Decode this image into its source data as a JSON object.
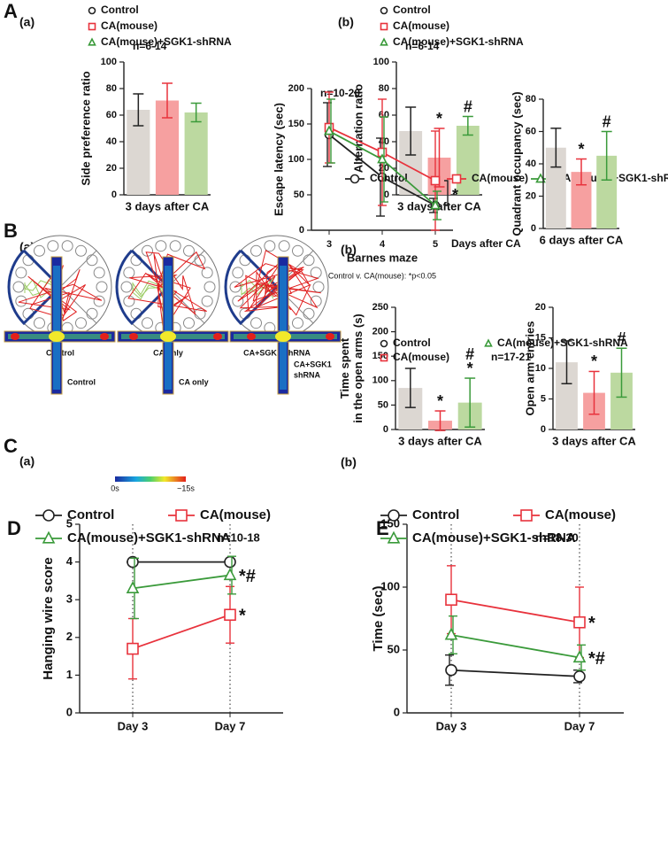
{
  "panel_letters": [
    "A",
    "B",
    "C",
    "D",
    "E"
  ],
  "sublabels": [
    "(a)",
    "(b)"
  ],
  "illustrations": {
    "maze_labels": [
      "Control",
      "CA only",
      "CA+SGK1-shRNA"
    ],
    "plus_maze_labels": [
      [
        "Control"
      ],
      [
        "CA only"
      ],
      [
        "CA+SGK1",
        "shRNA"
      ]
    ],
    "scale_labels": [
      "0s",
      "~15s"
    ]
  },
  "chart_data": [
    {
      "type": "bar",
      "note": "n=6-14",
      "ylabel": [
        "Side preference ratio"
      ],
      "xlabel": "3 days after CA",
      "categories": [
        "Control",
        "CA(mouse)",
        "CA(mouse)+SGK1-shRNA"
      ],
      "markers": [
        "circle",
        "square",
        "triangle"
      ],
      "colors": [
        "#222222",
        "#e8323c",
        "#3a9a3a"
      ],
      "fill_colors": [
        "#dcd7d2",
        "#f6a0a0",
        "#bcd9a0"
      ],
      "values": [
        64,
        71,
        62
      ],
      "errors": [
        12,
        13,
        7
      ],
      "ylim": [
        0,
        100
      ],
      "yticks": [
        0,
        20,
        40,
        60,
        80,
        100
      ]
    },
    {
      "type": "bar",
      "note": "n=6-14",
      "ylabel": [
        "Alternation ratio"
      ],
      "xlabel": "3 days after CA",
      "categories": [
        "Control",
        "CA(mouse)",
        "CA(mouse)+SGK1-shRNA"
      ],
      "markers": [
        "circle",
        "square",
        "triangle"
      ],
      "colors": [
        "#222222",
        "#e8323c",
        "#3a9a3a"
      ],
      "fill_colors": [
        "#dcd7d2",
        "#f6a0a0",
        "#bcd9a0"
      ],
      "values": [
        48,
        28,
        52
      ],
      "errors": [
        18,
        22,
        7
      ],
      "significance": [
        null,
        [
          "*"
        ],
        [
          "#"
        ]
      ],
      "ylim": [
        0,
        100
      ],
      "yticks": [
        0,
        20,
        40,
        60,
        80,
        100
      ]
    },
    {
      "type": "line",
      "note": "n=10-20",
      "ylabel": [
        "Escape latency (sec)"
      ],
      "xlabel": "Barnes maze",
      "x_title": "Days after CA",
      "footnote": "Control v. CA(mouse): *p<0.05",
      "annotation": "*",
      "categories": [
        "3",
        "4",
        "5"
      ],
      "ylim": [
        0,
        200
      ],
      "yticks": [
        0,
        50,
        100,
        150,
        200
      ],
      "series": [
        {
          "name": "Control",
          "color": "#222222",
          "marker": "circle",
          "values": [
            135,
            75,
            35
          ],
          "errors": [
            45,
            55,
            10
          ]
        },
        {
          "name": "CA(mouse)",
          "color": "#e8323c",
          "marker": "square",
          "values": [
            145,
            110,
            70
          ],
          "errors": [
            50,
            75,
            70
          ]
        },
        {
          "name": "CA(mouse)+SGK1-shRNA",
          "color": "#3a9a3a",
          "marker": "triangle",
          "values": [
            140,
            100,
            35
          ],
          "errors": [
            45,
            60,
            20
          ]
        }
      ]
    },
    {
      "type": "bar",
      "ylabel": [
        "Quadrant occupancy (sec)"
      ],
      "xlabel": "6 days after CA",
      "markers": [
        "circle",
        "square",
        "triangle"
      ],
      "colors": [
        "#222222",
        "#e8323c",
        "#3a9a3a"
      ],
      "fill_colors": [
        "#dcd7d2",
        "#f6a0a0",
        "#bcd9a0"
      ],
      "values": [
        50,
        35,
        45
      ],
      "errors": [
        12,
        8,
        15
      ],
      "significance": [
        null,
        [
          "*"
        ],
        [
          "#"
        ]
      ],
      "ylim": [
        0,
        80
      ],
      "yticks": [
        0,
        20,
        40,
        60,
        80
      ]
    },
    {
      "type": "bar",
      "note": "n=17-21",
      "ylabel": [
        "Time spent",
        "in the open arms (s)"
      ],
      "xlabel": "3 days after CA",
      "categories": [
        "Control",
        "CA(mouse)",
        "CA(mouse)+SGK1-shRNA"
      ],
      "markers": [
        "circle",
        "square",
        "triangle"
      ],
      "colors": [
        "#222222",
        "#e8323c",
        "#3a9a3a"
      ],
      "fill_colors": [
        "#dcd7d2",
        "#f6a0a0",
        "#bcd9a0"
      ],
      "values": [
        85,
        18,
        55
      ],
      "errors": [
        40,
        20,
        50
      ],
      "significance": [
        null,
        [
          "*"
        ],
        [
          "#",
          "*"
        ]
      ],
      "ylim": [
        0,
        250
      ],
      "yticks": [
        0,
        50,
        100,
        150,
        200,
        250
      ]
    },
    {
      "type": "bar",
      "ylabel": [
        "Open arm entries"
      ],
      "xlabel": "3 days after CA",
      "markers": [
        "circle",
        "square",
        "triangle"
      ],
      "colors": [
        "#222222",
        "#e8323c",
        "#3a9a3a"
      ],
      "fill_colors": [
        "#dcd7d2",
        "#f6a0a0",
        "#bcd9a0"
      ],
      "values": [
        11,
        6,
        9.3
      ],
      "errors": [
        3.5,
        3.5,
        4
      ],
      "significance": [
        null,
        [
          "*"
        ],
        [
          "#"
        ]
      ],
      "ylim": [
        0,
        20
      ],
      "yticks": [
        0,
        5,
        10,
        15,
        20
      ]
    },
    {
      "type": "line",
      "note": "n=10-18",
      "ylabel": [
        "Hanging wire score"
      ],
      "dotted_guides": true,
      "categories": [
        "Day 3",
        "Day 7"
      ],
      "ylim": [
        0,
        5
      ],
      "yticks": [
        0,
        1,
        2,
        3,
        4,
        5
      ],
      "series": [
        {
          "name": "Control",
          "color": "#222222",
          "marker": "circle",
          "values": [
            4,
            4
          ],
          "errors": [
            0,
            0
          ]
        },
        {
          "name": "CA(mouse)",
          "color": "#e8323c",
          "marker": "square",
          "values": [
            1.7,
            2.6
          ],
          "errors": [
            0.8,
            0.75
          ],
          "end_label": "*"
        },
        {
          "name": "CA(mouse)+SGK1-shRNA",
          "color": "#3a9a3a",
          "marker": "triangle",
          "values": [
            3.3,
            3.65
          ],
          "errors": [
            0.8,
            0.5
          ],
          "end_label": "*#"
        }
      ]
    },
    {
      "type": "line",
      "note": "n=18-30",
      "ylabel": [
        "Time (sec)"
      ],
      "dotted_guides": true,
      "categories": [
        "Day 3",
        "Day 7"
      ],
      "ylim": [
        0,
        150
      ],
      "yticks": [
        0,
        50,
        100,
        150
      ],
      "series": [
        {
          "name": "Control",
          "color": "#222222",
          "marker": "circle",
          "values": [
            34,
            29
          ],
          "errors": [
            12,
            5
          ]
        },
        {
          "name": "CA(mouse)",
          "color": "#e8323c",
          "marker": "square",
          "values": [
            90,
            72
          ],
          "errors": [
            27,
            28
          ],
          "end_label": "*"
        },
        {
          "name": "CA(mouse)+SGK1-shRNA",
          "color": "#3a9a3a",
          "marker": "triangle",
          "values": [
            62,
            44
          ],
          "errors": [
            15,
            10
          ],
          "end_label": "*#"
        }
      ]
    }
  ]
}
